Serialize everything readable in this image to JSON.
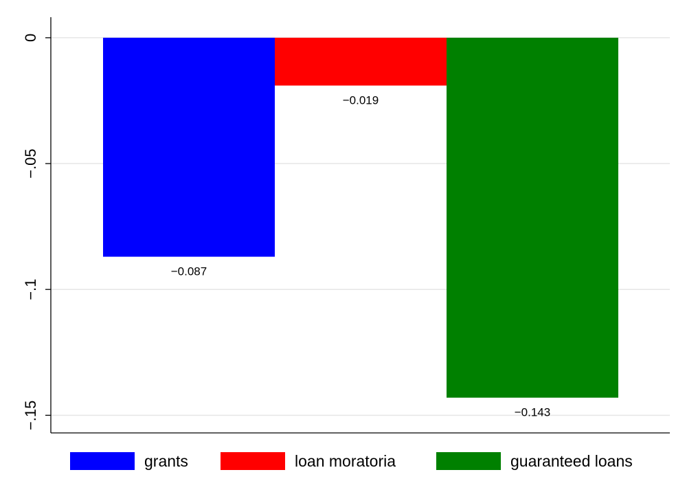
{
  "chart_data": {
    "type": "bar",
    "title": "",
    "xlabel": "",
    "ylabel": "",
    "ylim": [
      -0.157,
      0.0068
    ],
    "grid": true,
    "legend_position": "bottom",
    "yticks": [
      {
        "value": 0,
        "label": "0"
      },
      {
        "value": -0.05,
        "label": "−.05"
      },
      {
        "value": -0.1,
        "label": "−.1"
      },
      {
        "value": -0.15,
        "label": "−.15"
      }
    ],
    "series": [
      {
        "name": "grants",
        "value": -0.087,
        "label": "−0.087",
        "color": "#0000ff"
      },
      {
        "name": "loan moratoria",
        "value": -0.019,
        "label": "−0.019",
        "color": "#ff0000"
      },
      {
        "name": "guaranteed loans",
        "value": -0.143,
        "label": "−0.143",
        "color": "#008000"
      }
    ]
  }
}
